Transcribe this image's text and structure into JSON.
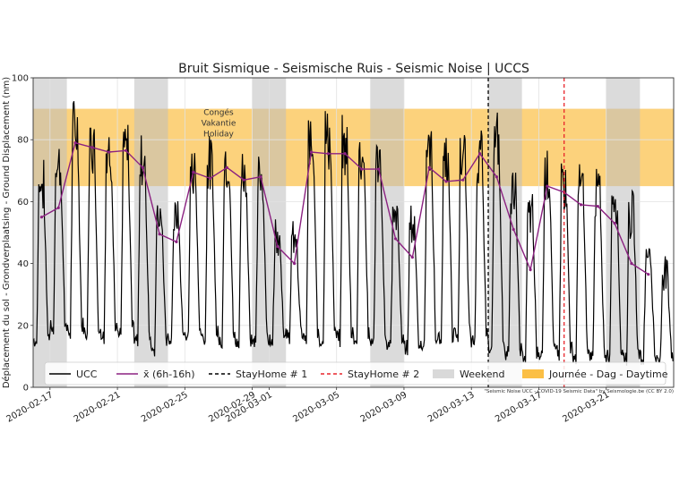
{
  "chart_data": {
    "type": "line",
    "title": "Bruit Sismique - Seismische Ruis - Seismic Noise | UCCS",
    "xlabel": "",
    "ylabel": "Déplacement du sol - Grondverplaatsing - Ground Displacement (nm)",
    "ylim": [
      0,
      100
    ],
    "xlim": [
      "2020-02-16",
      "2020-03-25"
    ],
    "yticks": [
      0,
      20,
      40,
      60,
      80,
      100
    ],
    "xticks": [
      "2020-02-17",
      "2020-02-21",
      "2020-02-25",
      "2020-02-29",
      "2020-03-01",
      "2020-03-05",
      "2020-03-09",
      "2020-03-13",
      "2020-03-17",
      "2020-03-21"
    ],
    "grid": true,
    "daytime_band": {
      "from": 65,
      "to": 90,
      "label": "Journée - Dag - Daytime",
      "color": "#fbbf45"
    },
    "weekends": [
      [
        "2020-02-16",
        "2020-02-18"
      ],
      [
        "2020-02-22",
        "2020-02-24"
      ],
      [
        "2020-02-29",
        "2020-03-02"
      ],
      [
        "2020-03-07",
        "2020-03-09"
      ],
      [
        "2020-03-14",
        "2020-03-16"
      ],
      [
        "2020-03-21",
        "2020-03-23"
      ]
    ],
    "vlines": [
      {
        "name": "StayHome # 1",
        "date": "2020-03-14",
        "color": "#000000",
        "dash": "4,3"
      },
      {
        "name": "StayHome # 2",
        "date": "2020-03-18.5",
        "color": "#e8252b",
        "dash": "4,3"
      }
    ],
    "annotation": {
      "lines": [
        "Congés",
        "Vakantie",
        "Holiday"
      ],
      "x": "2020-02-27"
    },
    "credit": "\"Seismic Noise UCC - COVID-19 Seismic Data\" by Seismologie.be (CC BY 2.0)",
    "series": [
      {
        "name": "UCC",
        "color": "#000000",
        "description": "hourly noise; daily cycle between nighttime minimum and daytime maximum",
        "daily_min": [
          14,
          18,
          17,
          16,
          16,
          17,
          15,
          12,
          15,
          16,
          15,
          14,
          13,
          13,
          14,
          16,
          15,
          14,
          15,
          15,
          14,
          13,
          12,
          13,
          14,
          16,
          14,
          12,
          10,
          9,
          10,
          10,
          9,
          9,
          9,
          9,
          9,
          8
        ],
        "daily_max": [
          72,
          80,
          92,
          88,
          85,
          85,
          82,
          62,
          60,
          78,
          80,
          82,
          78,
          75,
          55,
          52,
          88,
          90,
          86,
          84,
          80,
          60,
          58,
          85,
          83,
          82,
          84,
          88,
          72,
          62,
          78,
          74,
          72,
          70,
          70,
          62,
          48,
          42
        ]
      },
      {
        "name": "x̄ (6h-16h)",
        "color": "#8b2181",
        "x": [
          "2020-02-16.5",
          "2020-02-17.5",
          "2020-02-18.5",
          "2020-02-19.5",
          "2020-02-20.5",
          "2020-02-21.5",
          "2020-02-22.5",
          "2020-02-23.5",
          "2020-02-24.5",
          "2020-02-25.5",
          "2020-02-26.5",
          "2020-02-27.5",
          "2020-02-28.5",
          "2020-02-29.5",
          "2020-03-01.5",
          "2020-03-02.5",
          "2020-03-03.5",
          "2020-03-04.5",
          "2020-03-05.5",
          "2020-03-06.5",
          "2020-03-07.5",
          "2020-03-08.5",
          "2020-03-09.5",
          "2020-03-10.5",
          "2020-03-11.5",
          "2020-03-12.5",
          "2020-03-13.5",
          "2020-03-14.5",
          "2020-03-15.5",
          "2020-03-16.5",
          "2020-03-17.5",
          "2020-03-18.5",
          "2020-03-19.5",
          "2020-03-20.5",
          "2020-03-21.5",
          "2020-03-22.5",
          "2020-03-23.5"
        ],
        "values": [
          55,
          58,
          79,
          77.5,
          76,
          76.5,
          71,
          49.5,
          47,
          69.5,
          67.5,
          71,
          67,
          68,
          45.5,
          40,
          76,
          75.5,
          75.5,
          70.5,
          70.5,
          48,
          42,
          71,
          66.5,
          67,
          75.5,
          68,
          51,
          38,
          65,
          63,
          59,
          58.5,
          53,
          40,
          36.5
        ]
      }
    ],
    "legend": {
      "placement": "bottom",
      "entries": [
        {
          "label": "UCC",
          "kind": "line",
          "color": "#000000"
        },
        {
          "label": "x̄ (6h-16h)",
          "kind": "line",
          "color": "#8b2181"
        },
        {
          "label": "StayHome # 1",
          "kind": "dash",
          "color": "#000000"
        },
        {
          "label": "StayHome # 2",
          "kind": "dash",
          "color": "#e8252b"
        },
        {
          "label": "Weekend",
          "kind": "patch",
          "color": "#d9d9d9"
        },
        {
          "label": "Journée - Dag - Daytime",
          "kind": "patch",
          "color": "#fbbf45"
        }
      ]
    }
  }
}
